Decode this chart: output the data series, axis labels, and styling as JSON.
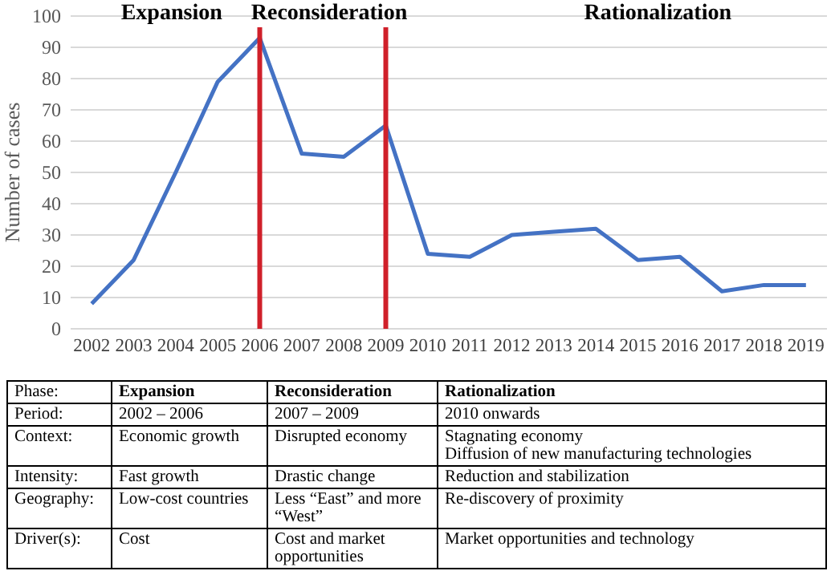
{
  "chart_data": [
    {
      "type": "line",
      "ylabel": "Number of cases",
      "categories": [
        "2002",
        "2003",
        "2004",
        "2005",
        "2006",
        "2007",
        "2008",
        "2009",
        "2010",
        "2011",
        "2012",
        "2013",
        "2014",
        "2015",
        "2016",
        "2017",
        "2018",
        "2019"
      ],
      "series": [
        {
          "color": "#4472c4",
          "values": [
            8,
            22,
            50,
            79,
            93,
            56,
            55,
            65,
            24,
            23,
            30,
            31,
            32,
            22,
            23,
            12,
            14,
            14
          ]
        }
      ],
      "ylim": [
        0,
        100
      ],
      "yticks": [
        0,
        10,
        20,
        30,
        40,
        50,
        60,
        70,
        80,
        90,
        100
      ],
      "grid": "y",
      "marker": "none",
      "line_style": "solid",
      "ref_lines": [
        {
          "axis": "x",
          "value": "2006",
          "color": "#d0202a"
        },
        {
          "axis": "x",
          "value": "2009",
          "color": "#d0202a"
        }
      ],
      "annotations": [
        "Expansion",
        "Reconsideration",
        "Rationalization"
      ]
    },
    {
      "type": "other",
      "annotations": [
        "Phase:",
        "Expansion",
        "Reconsideration",
        "Rationalization",
        "Period:",
        "2002 – 2006",
        "2007 – 2009",
        "2010 onwards",
        "Context:",
        "Economic growth",
        "Disrupted economy",
        "Stagnating economy\nDiffusion of new manufacturing technologies",
        "Intensity:",
        "Fast growth",
        "Drastic change",
        "Reduction and stabilization",
        "Geography:",
        "Low-cost countries",
        "Less “East” and more “West”",
        "Re-discovery of proximity",
        "Driver(s):",
        "Cost",
        "Cost and market opportunities",
        "Market opportunities and technology"
      ]
    }
  ]
}
